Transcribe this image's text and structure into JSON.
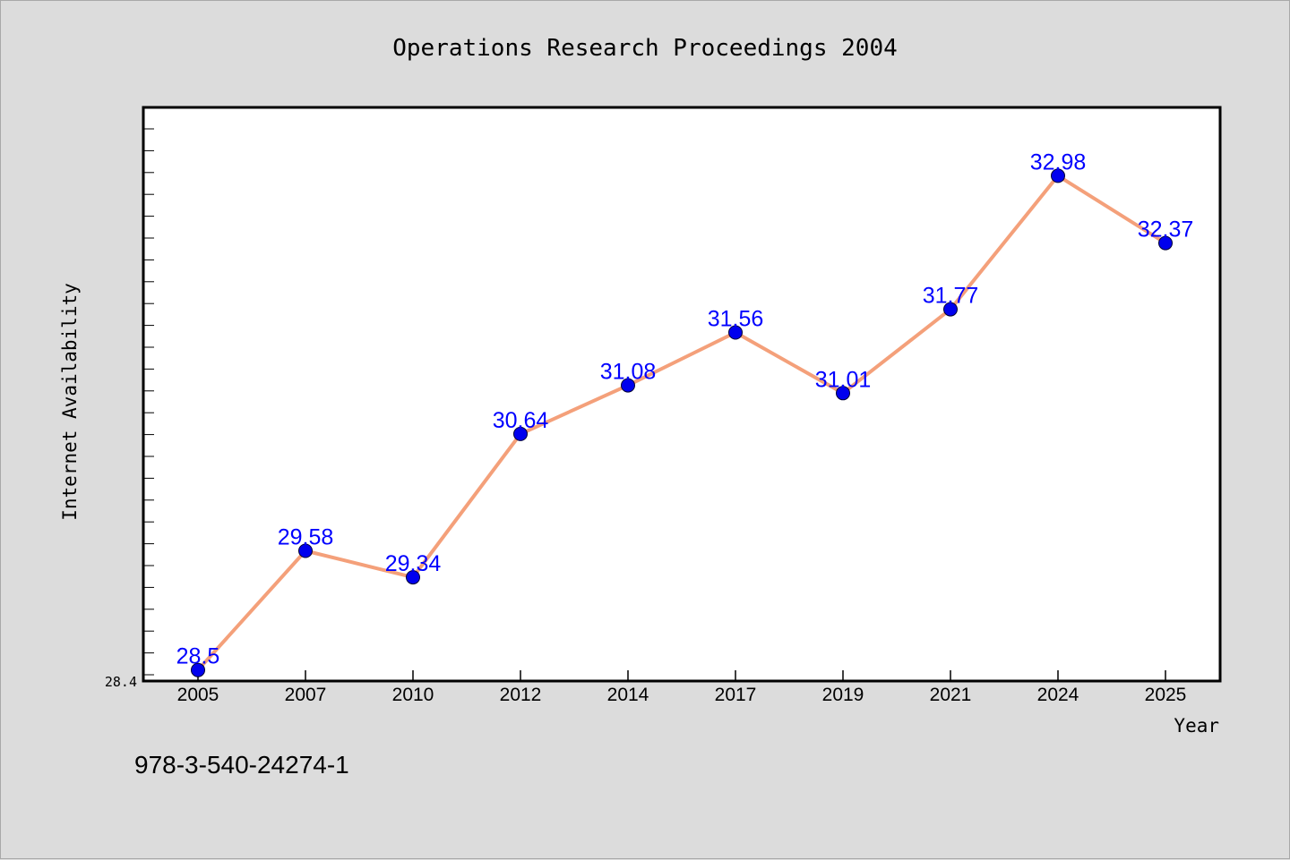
{
  "chart_data": {
    "type": "line",
    "title": "Operations Research Proceedings 2004",
    "xlabel": "Year",
    "ylabel": "Internet Availability",
    "categories": [
      "2005",
      "2007",
      "2010",
      "2012",
      "2014",
      "2017",
      "2019",
      "2021",
      "2024",
      "2025"
    ],
    "series": [
      {
        "values": [
          28.5,
          29.58,
          29.34,
          30.64,
          31.08,
          31.56,
          31.01,
          31.77,
          32.98,
          32.37
        ],
        "labels": [
          "28.5",
          "29.58",
          "29.34",
          "30.64",
          "31.08",
          "31.56",
          "31.01",
          "31.77",
          "32.98",
          "32.37"
        ],
        "line_color": "#f4a07a",
        "marker_color": "#0000ee"
      }
    ],
    "yticks": [
      "28.4"
    ],
    "ylim": [
      28.4,
      33.6
    ],
    "grid": false,
    "legend": "none"
  },
  "footer": {
    "isbn": "978-3-540-24274-1"
  },
  "colors": {
    "background": "#dcdcdc",
    "plot_background": "#ffffff",
    "label_color": "#0000ff"
  }
}
